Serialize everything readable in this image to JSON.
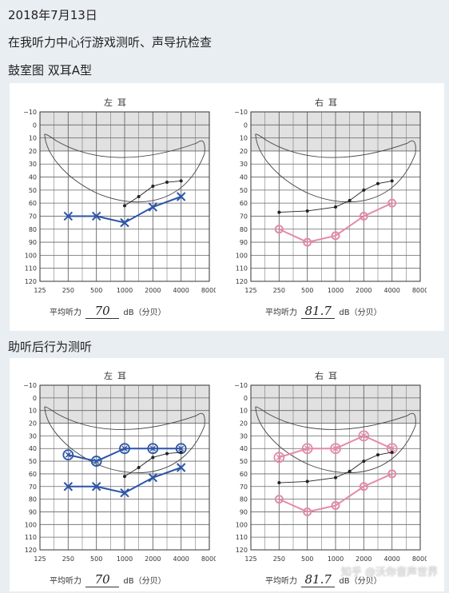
{
  "header": {
    "date": "2018年7月13日",
    "desc": "在我听力中心行游戏测听、声导抗检查",
    "tympanogram": "鼓室图 双耳A型"
  },
  "section2_title": "助听后行为测听",
  "watermark": "知乎 @沃你音声世界",
  "axis": {
    "y_ticks": [
      "−10",
      "0",
      "10",
      "20",
      "30",
      "40",
      "50",
      "60",
      "70",
      "80",
      "90",
      "100",
      "110",
      "120"
    ],
    "x_ticks": [
      "125",
      "250",
      "500",
      "1000",
      "2000",
      "4000",
      "8000"
    ]
  },
  "colors": {
    "left_ear": "#2b55a8",
    "right_ear": "#e58aa6",
    "banana_fill": "#e1e1e1",
    "panel": "#ffffff",
    "page": "#e9eef3"
  },
  "charts": [
    {
      "title": "左耳",
      "footer": {
        "label": "平均听力",
        "value": "70",
        "unit": "dB（分贝）"
      },
      "chart_data": {
        "type": "line",
        "x": [
          250,
          500,
          1000,
          2000,
          4000
        ],
        "xscale": "log",
        "ylim": [
          -10,
          120
        ],
        "yaxis": "inverted",
        "series": [
          {
            "marker": "x",
            "color": "#2b55a8",
            "values": [
              70,
              70,
              75,
              63,
              55
            ]
          },
          {
            "marker": "dot",
            "color": "#222222",
            "x": [
              1000,
              1414,
              2000,
              2828,
              4000
            ],
            "values": [
              62,
              55,
              47,
              44,
              43
            ]
          }
        ]
      }
    },
    {
      "title": "右耳",
      "footer": {
        "label": "平均听力",
        "value": "81.7",
        "unit": "dB（分贝）"
      },
      "chart_data": {
        "type": "line",
        "x": [
          250,
          500,
          1000,
          2000,
          4000
        ],
        "xscale": "log",
        "ylim": [
          -10,
          120
        ],
        "yaxis": "inverted",
        "series": [
          {
            "marker": "o",
            "color": "#e58aa6",
            "values": [
              80,
              90,
              85,
              70,
              60
            ]
          },
          {
            "marker": "dot",
            "color": "#222222",
            "x": [
              250,
              500,
              1000,
              1414,
              2000,
              2828,
              4000
            ],
            "values": [
              67,
              66,
              63,
              58,
              50,
              45,
              43
            ]
          }
        ]
      }
    },
    {
      "title": "左耳",
      "footer": {
        "label": "平均听力",
        "value": "70",
        "unit": "dB（分贝）"
      },
      "chart_data": {
        "type": "line",
        "x": [
          250,
          500,
          1000,
          2000,
          4000
        ],
        "xscale": "log",
        "ylim": [
          -10,
          120
        ],
        "yaxis": "inverted",
        "series": [
          {
            "marker": "x",
            "color": "#2b55a8",
            "values": [
              70,
              70,
              75,
              63,
              55
            ]
          },
          {
            "marker": "aided-x",
            "color": "#2b55a8",
            "values": [
              45,
              50,
              40,
              40,
              40
            ]
          },
          {
            "marker": "dot",
            "color": "#222222",
            "x": [
              1000,
              1414,
              2000,
              2828,
              4000
            ],
            "values": [
              62,
              55,
              47,
              44,
              43
            ]
          }
        ]
      }
    },
    {
      "title": "右耳",
      "footer": {
        "label": "平均听力",
        "value": "81.7",
        "unit": "dB（分贝）"
      },
      "chart_data": {
        "type": "line",
        "x": [
          250,
          500,
          1000,
          2000,
          4000
        ],
        "xscale": "log",
        "ylim": [
          -10,
          120
        ],
        "yaxis": "inverted",
        "series": [
          {
            "marker": "o",
            "color": "#e58aa6",
            "values": [
              80,
              90,
              85,
              70,
              60
            ]
          },
          {
            "marker": "aided-o",
            "color": "#e58aa6",
            "values": [
              47,
              40,
              40,
              30,
              40
            ]
          },
          {
            "marker": "dot",
            "color": "#222222",
            "x": [
              250,
              500,
              1000,
              1414,
              2000,
              2828,
              4000
            ],
            "values": [
              67,
              66,
              63,
              58,
              50,
              45,
              43
            ]
          }
        ]
      }
    }
  ]
}
